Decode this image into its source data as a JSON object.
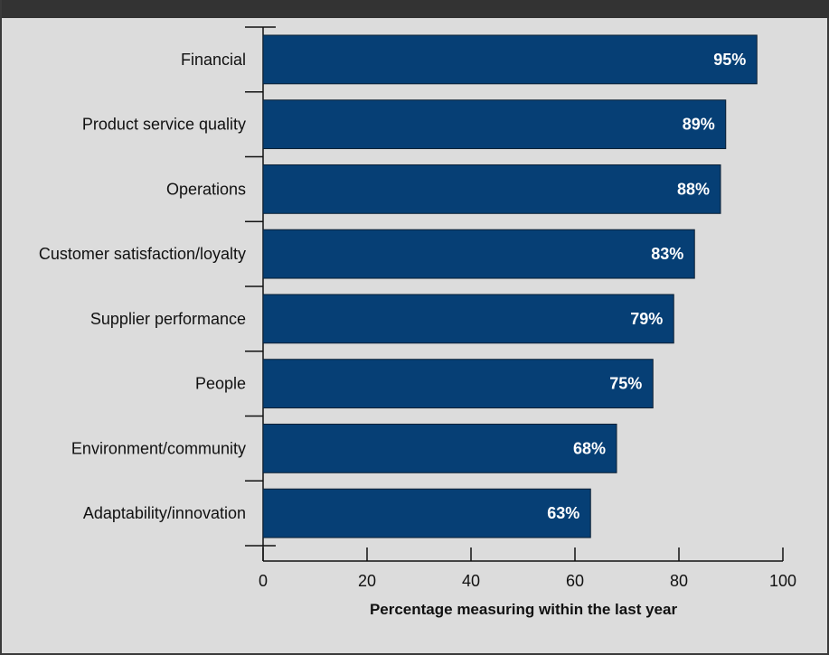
{
  "chart_data": {
    "type": "bar",
    "orientation": "horizontal",
    "categories": [
      "Financial",
      "Product service quality",
      "Operations",
      "Customer satisfaction/loyalty",
      "Supplier performance",
      "People",
      "Environment/community",
      "Adaptability/innovation"
    ],
    "values": [
      95,
      89,
      88,
      83,
      79,
      75,
      68,
      63
    ],
    "data_labels": [
      "95%",
      "89%",
      "88%",
      "83%",
      "79%",
      "75%",
      "68%",
      "63%"
    ],
    "title": "",
    "xlabel": "Percentage measuring within the last year",
    "ylabel": "",
    "xlim": [
      0,
      100
    ],
    "xticks": [
      0,
      20,
      40,
      60,
      80,
      100
    ],
    "grid": false,
    "legend": "none",
    "colors": {
      "bar_fill": "#063f75",
      "bar_stroke": "#0b1f33",
      "background": "#dcdcdc",
      "header_band": "#333333"
    }
  }
}
